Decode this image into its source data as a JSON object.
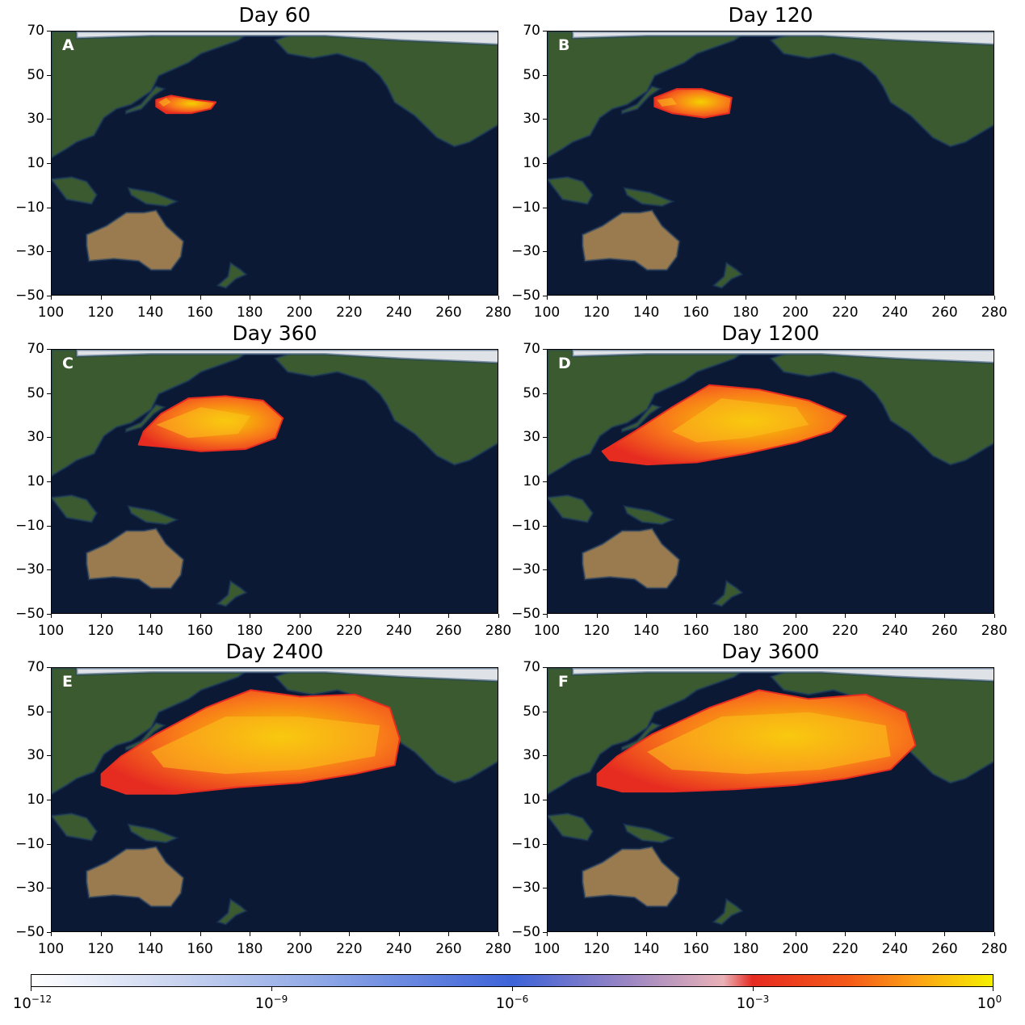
{
  "figure": {
    "panels": [
      {
        "id": "A",
        "title": "Day 60"
      },
      {
        "id": "B",
        "title": "Day 120"
      },
      {
        "id": "C",
        "title": "Day 360"
      },
      {
        "id": "D",
        "title": "Day 1200"
      },
      {
        "id": "E",
        "title": "Day 2400"
      },
      {
        "id": "F",
        "title": "Day 3600"
      }
    ],
    "x_ticks": [
      "100",
      "120",
      "140",
      "160",
      "180",
      "200",
      "220",
      "240",
      "260",
      "280"
    ],
    "y_ticks": [
      "70",
      "50",
      "30",
      "10",
      "−10",
      "−30",
      "−50"
    ],
    "colorbar": {
      "ticks": [
        {
          "base": "10",
          "exp": "−12"
        },
        {
          "base": "10",
          "exp": "−9"
        },
        {
          "base": "10",
          "exp": "−6"
        },
        {
          "base": "10",
          "exp": "−3"
        },
        {
          "base": "10",
          "exp": "0"
        }
      ],
      "colors": [
        "#ffffff",
        "#8fa8e6",
        "#3d63d8",
        "#e62b21",
        "#f5f000"
      ]
    },
    "map_colors": {
      "ocean": "#0b1935",
      "land": "#3b5a2f",
      "desert": "#9a7a4f",
      "ice": "#dfe3e8",
      "plume_edge": "#e62b21",
      "plume_core": "#f5d000"
    }
  }
}
